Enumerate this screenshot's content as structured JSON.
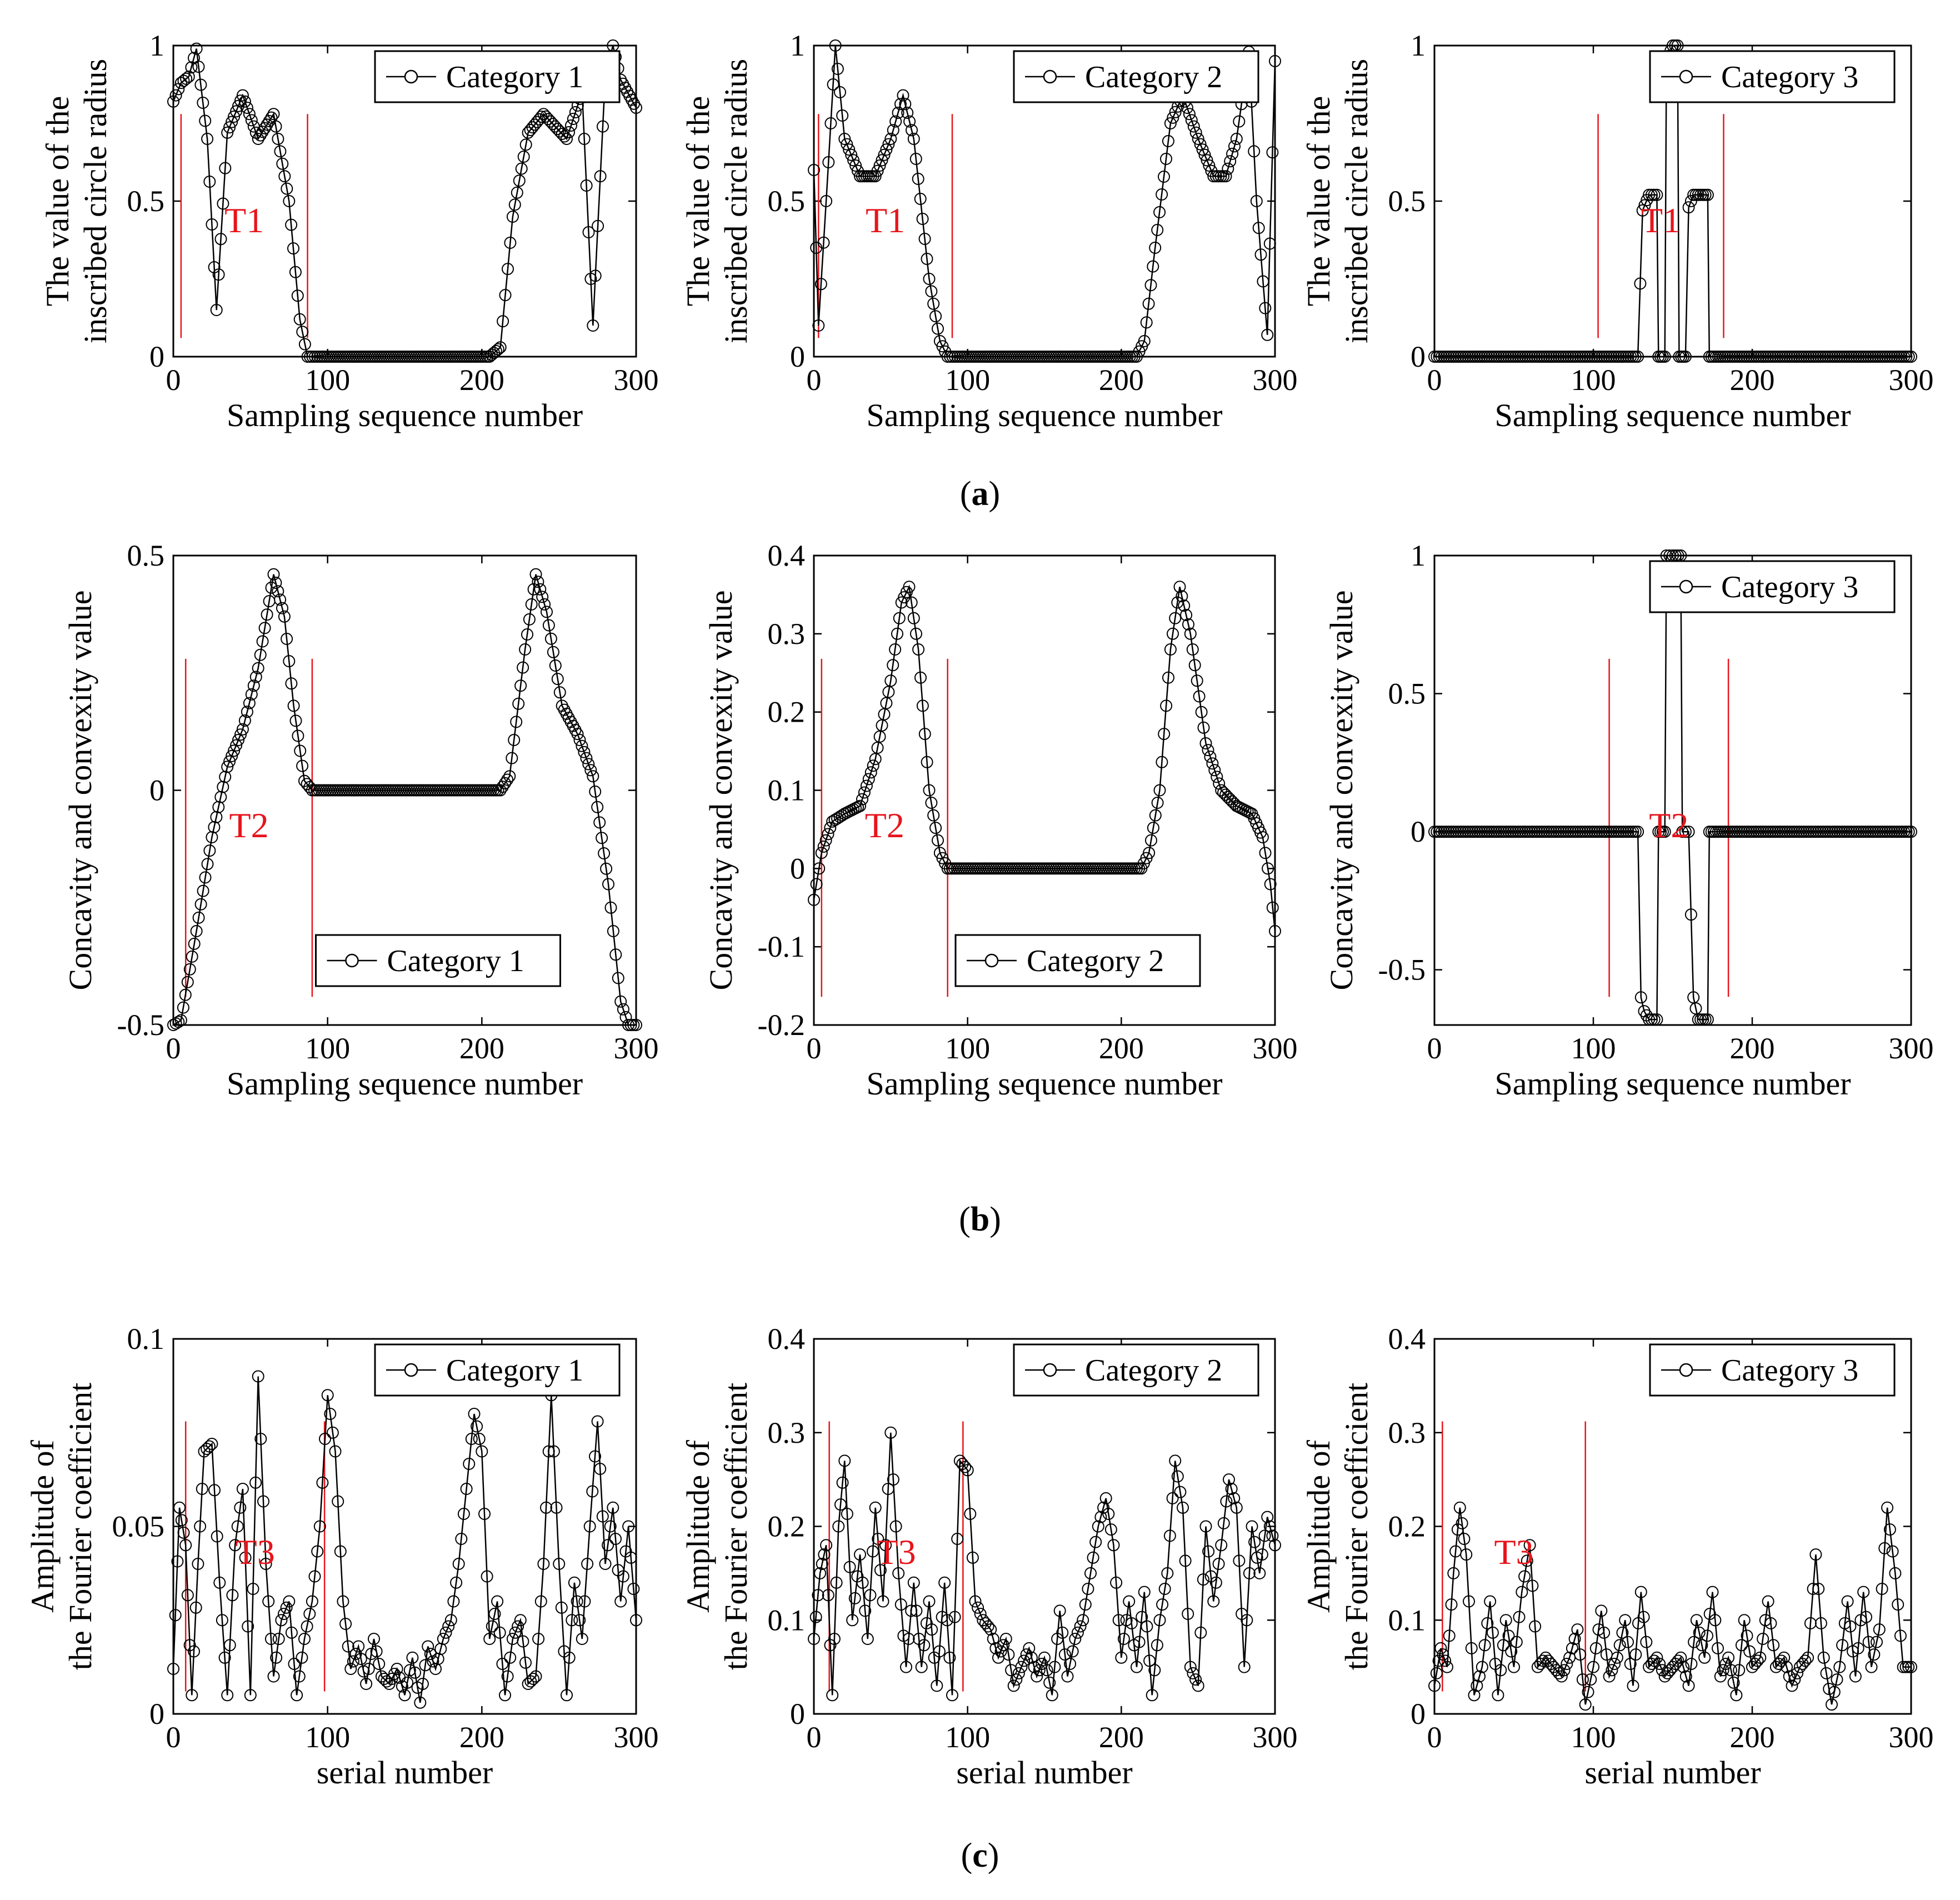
{
  "figure": {
    "captions": [
      {
        "pre": "(",
        "letter": "a",
        "post": ")"
      },
      {
        "pre": "(",
        "letter": "b",
        "post": ")"
      },
      {
        "pre": "(",
        "letter": "c",
        "post": ")"
      }
    ]
  },
  "colors": {
    "line": "#000000",
    "marker": "#000000",
    "boundary": "#e8141b",
    "axis": "#000000"
  },
  "chart_data": [
    {
      "id": "a1",
      "type": "line",
      "row": 0,
      "col": 0,
      "xlabel": "Sampling sequence number",
      "ylabel": [
        "The value of the",
        "inscribed circle radius"
      ],
      "xlim": [
        0,
        300
      ],
      "ylim": [
        0,
        1
      ],
      "xticks": [
        0,
        100,
        200,
        300
      ],
      "yticks": [
        0,
        0.5,
        1
      ],
      "ytick_labels": [
        "0",
        "0.5",
        "1"
      ],
      "legend": {
        "label": "Category 1",
        "position": "top-right"
      },
      "region": {
        "label": "T1",
        "x1": 5,
        "x2": 87
      },
      "series": [
        {
          "name": "Category 1",
          "x": [
            0,
            5,
            10,
            15,
            22,
            28,
            35,
            45,
            55,
            65,
            75,
            82,
            87,
            95,
            150,
            205,
            212,
            220,
            230,
            240,
            255,
            265,
            272,
            280,
            285,
            290,
            300
          ],
          "y": [
            0.82,
            0.88,
            0.9,
            0.99,
            0.7,
            0.15,
            0.72,
            0.84,
            0.7,
            0.78,
            0.5,
            0.12,
            0,
            0,
            0,
            0,
            0.03,
            0.45,
            0.72,
            0.78,
            0.7,
            0.85,
            0.1,
            0.9,
            1.0,
            0.89,
            0.8
          ]
        }
      ]
    },
    {
      "id": "a2",
      "type": "line",
      "row": 0,
      "col": 1,
      "xlabel": "Sampling sequence number",
      "ylabel": [
        "The value of the",
        "inscribed circle radius"
      ],
      "xlim": [
        0,
        300
      ],
      "ylim": [
        0,
        1
      ],
      "xticks": [
        0,
        100,
        200,
        300
      ],
      "yticks": [
        0,
        0.5,
        1
      ],
      "ytick_labels": [
        "0",
        "0.5",
        "1"
      ],
      "legend": {
        "label": "Category 2",
        "position": "top-right"
      },
      "region": {
        "label": "T1",
        "x1": 3,
        "x2": 90
      },
      "series": [
        {
          "name": "Category 2",
          "x": [
            0,
            3,
            8,
            14,
            20,
            30,
            40,
            50,
            58,
            65,
            75,
            82,
            87,
            95,
            150,
            210,
            215,
            222,
            232,
            240,
            250,
            260,
            268,
            275,
            283,
            288,
            295,
            300
          ],
          "y": [
            0.6,
            0.1,
            0.5,
            1.0,
            0.7,
            0.58,
            0.58,
            0.7,
            0.84,
            0.7,
            0.25,
            0.05,
            0,
            0,
            0,
            0,
            0.05,
            0.35,
            0.75,
            0.84,
            0.7,
            0.58,
            0.58,
            0.7,
            0.98,
            0.5,
            0.07,
            0.95
          ]
        }
      ]
    },
    {
      "id": "a3",
      "type": "line",
      "row": 0,
      "col": 2,
      "xlabel": "Sampling sequence number",
      "ylabel": [
        "The value of the",
        "inscribed circle radius"
      ],
      "xlim": [
        0,
        300
      ],
      "ylim": [
        0,
        1
      ],
      "xticks": [
        0,
        100,
        200,
        300
      ],
      "yticks": [
        0,
        0.5,
        1
      ],
      "ytick_labels": [
        "0",
        "0.5",
        "1"
      ],
      "legend": {
        "label": "Category 3",
        "position": "top-right"
      },
      "region": {
        "label": "T1",
        "x1": 103,
        "x2": 182
      },
      "series": [
        {
          "name": "Category 3",
          "x": [
            0,
            60,
            128,
            131,
            135,
            140,
            141,
            145,
            146,
            150,
            153,
            154,
            158,
            160,
            163,
            166,
            172,
            173,
            180,
            240,
            300
          ],
          "y": [
            0,
            0,
            0,
            0.47,
            0.52,
            0.52,
            0,
            0,
            0.95,
            1.0,
            1.0,
            0,
            0,
            0.48,
            0.52,
            0.52,
            0.52,
            0,
            0,
            0,
            0
          ]
        }
      ]
    },
    {
      "id": "b1",
      "type": "line",
      "row": 1,
      "col": 0,
      "xlabel": "Sampling sequence number",
      "ylabel": [
        "Concavity and convexity value"
      ],
      "xlim": [
        0,
        300
      ],
      "ylim": [
        -0.5,
        0.5
      ],
      "xticks": [
        0,
        100,
        200,
        300
      ],
      "yticks": [
        -0.5,
        0,
        0.5
      ],
      "ytick_labels": [
        "-0.5",
        "0",
        "0.5"
      ],
      "legend": {
        "label": "Category 1",
        "position": "bottom-center"
      },
      "region": {
        "label": "T2",
        "x1": 8,
        "x2": 90
      },
      "series": [
        {
          "name": "Category 1",
          "x": [
            0,
            5,
            15,
            25,
            35,
            45,
            55,
            65,
            72,
            78,
            85,
            90,
            150,
            212,
            218,
            228,
            235,
            242,
            252,
            262,
            272,
            282,
            290,
            295,
            300
          ],
          "y": [
            -0.5,
            -0.49,
            -0.3,
            -0.1,
            0.05,
            0.13,
            0.26,
            0.46,
            0.37,
            0.18,
            0.02,
            0,
            0,
            0,
            0.03,
            0.3,
            0.46,
            0.38,
            0.18,
            0.12,
            0.03,
            -0.2,
            -0.45,
            -0.5,
            -0.5
          ]
        }
      ]
    },
    {
      "id": "b2",
      "type": "line",
      "row": 1,
      "col": 1,
      "xlabel": "Sampling sequence number",
      "ylabel": [
        "Concavity and convexity value"
      ],
      "xlim": [
        0,
        300
      ],
      "ylim": [
        -0.2,
        0.4
      ],
      "xticks": [
        0,
        100,
        200,
        300
      ],
      "yticks": [
        -0.2,
        -0.1,
        0,
        0.1,
        0.2,
        0.3,
        0.4
      ],
      "ytick_labels": [
        "-0.2",
        "-0.1",
        "0",
        "0.1",
        "0.2",
        "0.3",
        "0.4"
      ],
      "legend": {
        "label": "Category 2",
        "position": "bottom-center"
      },
      "region": {
        "label": "T2",
        "x1": 5,
        "x2": 87
      },
      "series": [
        {
          "name": "Category 2",
          "x": [
            0,
            5,
            12,
            20,
            30,
            40,
            50,
            57,
            62,
            68,
            75,
            82,
            87,
            150,
            213,
            218,
            225,
            232,
            238,
            245,
            255,
            265,
            275,
            285,
            292,
            297,
            300
          ],
          "y": [
            -0.04,
            0.02,
            0.06,
            0.07,
            0.08,
            0.14,
            0.24,
            0.34,
            0.36,
            0.28,
            0.1,
            0.02,
            0,
            0,
            0,
            0.02,
            0.1,
            0.28,
            0.36,
            0.3,
            0.16,
            0.1,
            0.08,
            0.07,
            0.04,
            -0.02,
            -0.08
          ]
        }
      ]
    },
    {
      "id": "b3",
      "type": "line",
      "row": 1,
      "col": 2,
      "xlabel": "Sampling sequence number",
      "ylabel": [
        "Concavity and convexity value"
      ],
      "xlim": [
        0,
        300
      ],
      "ylim": [
        -0.7,
        1
      ],
      "xticks": [
        0,
        100,
        200,
        300
      ],
      "yticks": [
        -0.5,
        0,
        0.5,
        1
      ],
      "ytick_labels": [
        "-0.5",
        "0",
        "0.5",
        "1"
      ],
      "legend": {
        "label": "Category 3",
        "position": "top-right"
      },
      "region": {
        "label": "T2",
        "x1": 110,
        "x2": 185
      },
      "series": [
        {
          "name": "Category 3",
          "x": [
            0,
            60,
            128,
            130,
            132,
            135,
            140,
            141,
            145,
            146,
            148,
            150,
            155,
            156,
            158,
            160,
            163,
            166,
            172,
            173,
            180,
            240,
            300
          ],
          "y": [
            0,
            0,
            0,
            -0.6,
            -0.65,
            -0.68,
            -0.68,
            0,
            0,
            1.0,
            1.0,
            1.0,
            1.0,
            0,
            0,
            0,
            -0.6,
            -0.68,
            -0.68,
            0,
            0,
            0,
            0
          ]
        }
      ]
    },
    {
      "id": "c1",
      "type": "line",
      "row": 2,
      "col": 0,
      "xlabel": "serial number",
      "ylabel": [
        "Amplitude of",
        "the Fourier coefficient"
      ],
      "xlim": [
        0,
        300
      ],
      "ylim": [
        0,
        0.1
      ],
      "xticks": [
        0,
        100,
        200,
        300
      ],
      "yticks": [
        0,
        0.05,
        0.1
      ],
      "ytick_labels": [
        "0",
        "0.05",
        "0.1"
      ],
      "legend": {
        "label": "Category 1",
        "position": "top-right"
      },
      "region": {
        "label": "T3",
        "x1": 8,
        "x2": 98
      },
      "series": [
        {
          "name": "Category 1",
          "x": [
            0,
            4,
            8,
            12,
            16,
            20,
            25,
            30,
            35,
            40,
            45,
            50,
            55,
            60,
            65,
            70,
            75,
            80,
            85,
            90,
            95,
            100,
            105,
            110,
            115,
            120,
            125,
            130,
            135,
            140,
            145,
            150,
            155,
            160,
            165,
            170,
            175,
            180,
            185,
            190,
            195,
            200,
            205,
            210,
            215,
            220,
            225,
            230,
            235,
            240,
            245,
            250,
            255,
            260,
            265,
            270,
            275,
            280,
            285,
            290,
            295,
            300
          ],
          "y": [
            0.012,
            0.055,
            0.045,
            0.005,
            0.04,
            0.07,
            0.072,
            0.035,
            0.005,
            0.045,
            0.06,
            0.005,
            0.09,
            0.04,
            0.01,
            0.025,
            0.03,
            0.005,
            0.02,
            0.03,
            0.05,
            0.085,
            0.07,
            0.03,
            0.012,
            0.018,
            0.008,
            0.02,
            0.01,
            0.008,
            0.012,
            0.005,
            0.015,
            0.003,
            0.018,
            0.012,
            0.02,
            0.025,
            0.04,
            0.06,
            0.08,
            0.07,
            0.02,
            0.03,
            0.005,
            0.02,
            0.025,
            0.008,
            0.01,
            0.04,
            0.085,
            0.04,
            0.005,
            0.035,
            0.02,
            0.05,
            0.078,
            0.04,
            0.055,
            0.03,
            0.05,
            0.025
          ]
        }
      ]
    },
    {
      "id": "c2",
      "type": "line",
      "row": 2,
      "col": 1,
      "xlabel": "serial number",
      "ylabel": [
        "Amplitude of",
        "the Fourier coefficient"
      ],
      "xlim": [
        0,
        300
      ],
      "ylim": [
        0,
        0.4
      ],
      "xticks": [
        0,
        100,
        200,
        300
      ],
      "yticks": [
        0,
        0.1,
        0.2,
        0.3,
        0.4
      ],
      "ytick_labels": [
        "0",
        "0.1",
        "0.2",
        "0.3",
        "0.4"
      ],
      "legend": {
        "label": "Category 2",
        "position": "top-right"
      },
      "region": {
        "label": "T3",
        "x1": 10,
        "x2": 97
      },
      "series": [
        {
          "name": "Category 2",
          "x": [
            0,
            4,
            8,
            12,
            16,
            20,
            25,
            30,
            35,
            40,
            45,
            50,
            55,
            60,
            65,
            70,
            75,
            80,
            85,
            90,
            95,
            100,
            105,
            110,
            115,
            120,
            125,
            130,
            135,
            140,
            145,
            150,
            155,
            160,
            165,
            170,
            175,
            180,
            185,
            190,
            195,
            200,
            205,
            210,
            215,
            220,
            225,
            230,
            235,
            240,
            245,
            250,
            255,
            260,
            265,
            270,
            275,
            280,
            285,
            290,
            295,
            300
          ],
          "y": [
            0.08,
            0.15,
            0.18,
            0.02,
            0.2,
            0.27,
            0.1,
            0.17,
            0.08,
            0.22,
            0.12,
            0.3,
            0.15,
            0.05,
            0.14,
            0.05,
            0.12,
            0.03,
            0.14,
            0.02,
            0.27,
            0.26,
            0.12,
            0.1,
            0.09,
            0.06,
            0.08,
            0.03,
            0.05,
            0.07,
            0.04,
            0.06,
            0.02,
            0.11,
            0.04,
            0.08,
            0.1,
            0.15,
            0.2,
            0.23,
            0.18,
            0.06,
            0.12,
            0.05,
            0.13,
            0.02,
            0.1,
            0.15,
            0.27,
            0.22,
            0.05,
            0.03,
            0.2,
            0.12,
            0.18,
            0.25,
            0.22,
            0.05,
            0.2,
            0.15,
            0.21,
            0.18
          ]
        }
      ]
    },
    {
      "id": "c3",
      "type": "line",
      "row": 2,
      "col": 2,
      "xlabel": "serial number",
      "ylabel": [
        "Amplitude of",
        "the Fourier coefficient"
      ],
      "xlim": [
        0,
        300
      ],
      "ylim": [
        0,
        0.4
      ],
      "xticks": [
        0,
        100,
        200,
        300
      ],
      "yticks": [
        0,
        0.1,
        0.2,
        0.3,
        0.4
      ],
      "ytick_labels": [
        "0",
        "0.1",
        "0.2",
        "0.3",
        "0.4"
      ],
      "legend": {
        "label": "Category 3",
        "position": "top-right"
      },
      "region": {
        "label": "T3",
        "x1": 5,
        "x2": 95
      },
      "series": [
        {
          "name": "Category 3",
          "x": [
            0,
            4,
            8,
            12,
            16,
            20,
            25,
            30,
            35,
            40,
            45,
            50,
            55,
            60,
            65,
            70,
            75,
            80,
            85,
            90,
            95,
            100,
            105,
            110,
            115,
            120,
            125,
            130,
            135,
            140,
            145,
            150,
            155,
            160,
            165,
            170,
            175,
            180,
            185,
            190,
            195,
            200,
            205,
            210,
            215,
            220,
            225,
            230,
            235,
            240,
            245,
            250,
            255,
            260,
            265,
            270,
            275,
            280,
            285,
            290,
            295,
            300
          ],
          "y": [
            0.03,
            0.07,
            0.05,
            0.15,
            0.22,
            0.17,
            0.02,
            0.05,
            0.12,
            0.02,
            0.1,
            0.05,
            0.13,
            0.18,
            0.05,
            0.06,
            0.05,
            0.04,
            0.06,
            0.09,
            0.01,
            0.05,
            0.11,
            0.04,
            0.06,
            0.1,
            0.03,
            0.13,
            0.05,
            0.06,
            0.04,
            0.05,
            0.06,
            0.03,
            0.1,
            0.06,
            0.13,
            0.04,
            0.06,
            0.02,
            0.1,
            0.05,
            0.06,
            0.12,
            0.05,
            0.06,
            0.03,
            0.05,
            0.06,
            0.17,
            0.06,
            0.01,
            0.05,
            0.12,
            0.04,
            0.13,
            0.05,
            0.09,
            0.22,
            0.15,
            0.05,
            0.05
          ]
        }
      ]
    }
  ]
}
